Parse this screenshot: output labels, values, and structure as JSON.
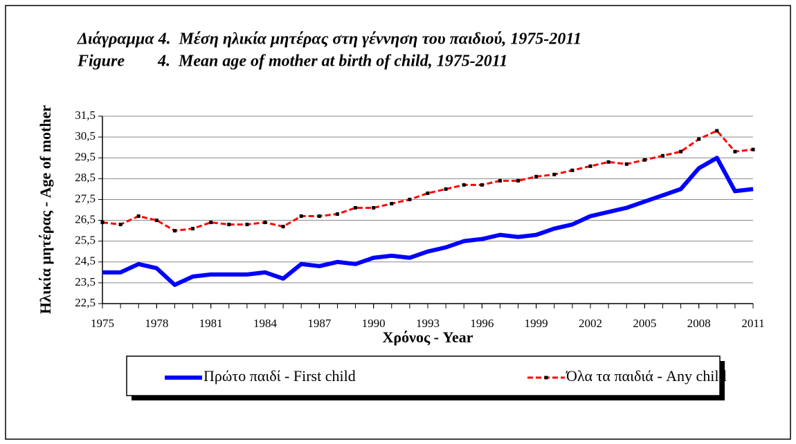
{
  "chart_data": {
    "type": "line",
    "title": [
      "Διάγραμμα 4.  Μέση ηλικία μητέρας στη γέννηση του παιδιού, 1975-2011",
      "Figure        4.  Mean age of mother at birth of child, 1975-2011"
    ],
    "x_label": "Χρόνος - Year",
    "y_label": "Ηλικία μητέρας - Age of mother",
    "x": [
      1975,
      1976,
      1977,
      1978,
      1979,
      1980,
      1981,
      1982,
      1983,
      1984,
      1985,
      1986,
      1987,
      1988,
      1989,
      1990,
      1991,
      1992,
      1993,
      1994,
      1995,
      1996,
      1997,
      1998,
      1999,
      2000,
      2001,
      2002,
      2003,
      2004,
      2005,
      2006,
      2007,
      2008,
      2009,
      2010,
      2011
    ],
    "series": [
      {
        "name": "Πρώτο παιδί - First child",
        "color": "#0000ff",
        "values": [
          24.0,
          24.0,
          24.4,
          24.2,
          23.4,
          23.8,
          23.9,
          23.9,
          23.9,
          24.0,
          23.7,
          24.4,
          24.3,
          24.5,
          24.4,
          24.7,
          24.8,
          24.7,
          25.0,
          25.2,
          25.5,
          25.6,
          25.8,
          25.7,
          25.8,
          26.1,
          26.3,
          26.7,
          26.9,
          27.1,
          27.4,
          27.7,
          28.0,
          29.0,
          29.5,
          27.9,
          28.0
        ]
      },
      {
        "name": "Όλα τα παιδιά - Any child",
        "color": "#ff0000",
        "marker_color": "#000000",
        "values": [
          26.4,
          26.3,
          26.7,
          26.5,
          26.0,
          26.1,
          26.4,
          26.3,
          26.3,
          26.4,
          26.2,
          26.7,
          26.7,
          26.8,
          27.1,
          27.1,
          27.3,
          27.5,
          27.8,
          28.0,
          28.2,
          28.2,
          28.4,
          28.4,
          28.6,
          28.7,
          28.9,
          29.1,
          29.3,
          29.2,
          29.4,
          29.6,
          29.8,
          30.4,
          30.8,
          29.8,
          29.9
        ]
      }
    ],
    "xlim": [
      1975,
      2011
    ],
    "xticks": [
      1975,
      1978,
      1981,
      1984,
      1987,
      1990,
      1993,
      1996,
      1999,
      2002,
      2005,
      2008,
      2011
    ],
    "ylim": [
      22.5,
      31.5
    ],
    "yticks": [
      {
        "value": 22.5,
        "label": "22,5"
      },
      {
        "value": 23.5,
        "label": "23,5"
      },
      {
        "value": 24.5,
        "label": "24,5"
      },
      {
        "value": 25.5,
        "label": "25,5"
      },
      {
        "value": 26.5,
        "label": "26,5"
      },
      {
        "value": 27.5,
        "label": "27,5"
      },
      {
        "value": 28.5,
        "label": "28,5"
      },
      {
        "value": 29.5,
        "label": "29,5"
      },
      {
        "value": 30.5,
        "label": "30,5"
      },
      {
        "value": 31.5,
        "label": "31,5"
      }
    ],
    "grid": true,
    "legend": "bottom"
  }
}
